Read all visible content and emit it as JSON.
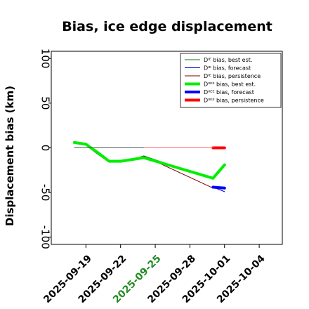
{
  "chart_data": {
    "type": "line",
    "title": "Bias, ice edge displacement",
    "xlabel": "",
    "ylabel": "Displacement bias (km)",
    "xlim": [
      "2025-09-16",
      "2025-10-06"
    ],
    "ylim": [
      -108,
      108
    ],
    "yticks": [
      100,
      50,
      0,
      -50,
      -100
    ],
    "xticks": [
      "2025-09-19",
      "2025-09-22",
      "2025-09-25",
      "2025-09-28",
      "2025-10-01",
      "2025-10-04"
    ],
    "highlighted_xtick": "2025-09-25",
    "highlighted_xtick_color": "#228b22",
    "zero_line": {
      "color": "#000000"
    },
    "legend": {
      "position": "top-right"
    },
    "series": [
      {
        "name": "D$^{IE}$ bias, best est.",
        "legend_label": "Dᴵᴱ bias, best est.",
        "color": "#007f00",
        "width": 1,
        "x": [
          "2025-09-18",
          "2025-09-19",
          "2025-09-20",
          "2025-09-21",
          "2025-09-22",
          "2025-09-23",
          "2025-09-24",
          "2025-09-30",
          "2025-10-01"
        ],
        "y": [
          5,
          3,
          -7,
          -16,
          -16,
          -13,
          -9,
          -35,
          -19
        ]
      },
      {
        "name": "D$^{IE}$ bias, forecast",
        "legend_label": "Dᴵᴱ bias, forecast",
        "color": "#0000cc",
        "width": 1,
        "x": [
          "2025-09-30",
          "2025-10-01"
        ],
        "y": [
          -44,
          -49
        ]
      },
      {
        "name": "D$^{IE}$ bias, persistence",
        "legend_label": "Dᴵᴱ bias, persistence",
        "color": "#7f0000",
        "width": 1,
        "x": [
          "2025-09-24",
          "2025-09-30",
          "2025-10-01"
        ],
        "y": [
          -9,
          -45,
          -46
        ]
      },
      {
        "name": "D$^{IIEE}$ bias, best est.",
        "legend_label": "Dᴵᴵᴱᴱ bias, best est.",
        "color": "#00ee00",
        "width": 4,
        "x": [
          "2025-09-18",
          "2025-09-19",
          "2025-09-20",
          "2025-09-21",
          "2025-09-22",
          "2025-09-23",
          "2025-09-24",
          "2025-09-30",
          "2025-10-01"
        ],
        "y": [
          6,
          4,
          -5,
          -15,
          -15,
          -13,
          -11,
          -34,
          -19
        ]
      },
      {
        "name": "D$^{IIEE}$ bias, forecast",
        "legend_label": "Dᴵᴵᴱᴱ bias, forecast",
        "color": "#0000ff",
        "width": 4,
        "x": [
          "2025-09-30",
          "2025-10-01"
        ],
        "y": [
          -44,
          -45
        ]
      },
      {
        "name": "D$^{IIEE}$ bias, persistence",
        "legend_label": "Dᴵᴵᴱᴱ bias, persistence",
        "color": "#ff0000",
        "width": 4,
        "x": [
          "2025-09-30",
          "2025-10-01"
        ],
        "y": [
          0,
          0
        ]
      },
      {
        "name": "",
        "color": "#ff6666",
        "width": 1,
        "x": [
          "2025-09-24",
          "2025-09-30"
        ],
        "y": [
          0,
          0
        ],
        "in_legend": false
      },
      {
        "name": "",
        "color": "#555555",
        "width": 1,
        "x": [
          "2025-09-18",
          "2025-09-24"
        ],
        "y": [
          0,
          0
        ],
        "in_legend": false
      }
    ]
  }
}
